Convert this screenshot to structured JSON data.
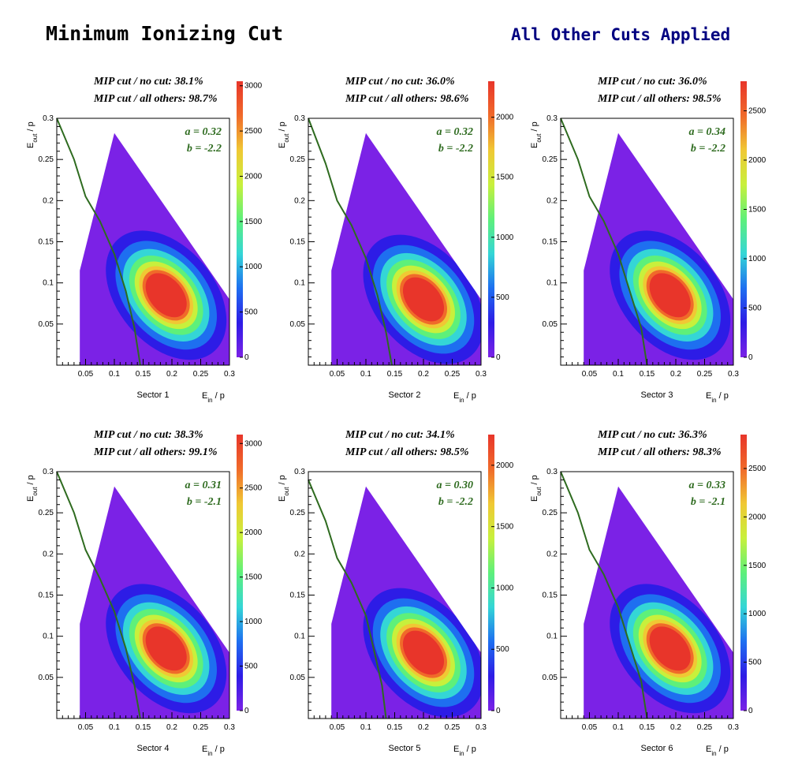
{
  "header": {
    "title": "Minimum Ionizing Cut",
    "subtitle": "All Other Cuts Applied"
  },
  "colors": {
    "cut_line": "#2e6b1f",
    "title_right": "#000080",
    "palette": [
      "#7b22e6",
      "#2d1ce6",
      "#1e6ff0",
      "#34d6d6",
      "#5ef07a",
      "#c8f03c",
      "#f0c834",
      "#f06a2a",
      "#e8352a"
    ]
  },
  "chart_data": [
    {
      "type": "heatmap",
      "sector_label": "Sector 1",
      "xlabel": "E_in / p",
      "ylabel": "E_out / p",
      "xlim": [
        0,
        0.3
      ],
      "ylim": [
        0,
        0.3
      ],
      "x_ticks": [
        "0.05",
        "0.1",
        "0.15",
        "0.2",
        "0.25",
        "0.3"
      ],
      "y_ticks": [
        "0.05",
        "0.1",
        "0.15",
        "0.2",
        "0.25",
        "0.3"
      ],
      "z_ticks": [
        "0",
        "500",
        "1000",
        "1500",
        "2000",
        "2500",
        "3000"
      ],
      "z_max": 3050,
      "stat_line1": "MIP cut / no cut: 38.1%",
      "stat_line2": "MIP cut / all others: 98.7%",
      "param_a": "a = 0.32",
      "param_b": "b = -2.2",
      "peak": [
        0.19,
        0.085
      ],
      "cut_line": [
        [
          0.0,
          0.3
        ],
        [
          0.03,
          0.25
        ],
        [
          0.05,
          0.205
        ],
        [
          0.075,
          0.175
        ],
        [
          0.1,
          0.135
        ],
        [
          0.12,
          0.09
        ],
        [
          0.135,
          0.045
        ],
        [
          0.145,
          0.0
        ]
      ]
    },
    {
      "type": "heatmap",
      "sector_label": "Sector 2",
      "xlabel": "E_in / p",
      "ylabel": "E_out / p",
      "xlim": [
        0,
        0.3
      ],
      "ylim": [
        0,
        0.3
      ],
      "x_ticks": [
        "0.05",
        "0.1",
        "0.15",
        "0.2",
        "0.25",
        "0.3"
      ],
      "y_ticks": [
        "0.05",
        "0.1",
        "0.15",
        "0.2",
        "0.25",
        "0.3"
      ],
      "z_ticks": [
        "0",
        "500",
        "1000",
        "1500",
        "2000"
      ],
      "z_max": 2300,
      "stat_line1": "MIP cut / no cut: 36.0%",
      "stat_line2": "MIP cut / all others: 98.6%",
      "param_a": "a = 0.32",
      "param_b": "b = -2.2",
      "peak": [
        0.2,
        0.08
      ],
      "cut_line": [
        [
          0.0,
          0.3
        ],
        [
          0.03,
          0.245
        ],
        [
          0.05,
          0.2
        ],
        [
          0.075,
          0.17
        ],
        [
          0.1,
          0.13
        ],
        [
          0.12,
          0.085
        ],
        [
          0.135,
          0.04
        ],
        [
          0.145,
          0.0
        ]
      ]
    },
    {
      "type": "heatmap",
      "sector_label": "Sector 3",
      "xlabel": "E_in / p",
      "ylabel": "E_out / p",
      "xlim": [
        0,
        0.3
      ],
      "ylim": [
        0,
        0.3
      ],
      "x_ticks": [
        "0.05",
        "0.1",
        "0.15",
        "0.2",
        "0.25",
        "0.3"
      ],
      "y_ticks": [
        "0.05",
        "0.1",
        "0.15",
        "0.2",
        "0.25",
        "0.3"
      ],
      "z_ticks": [
        "0",
        "500",
        "1000",
        "1500",
        "2000",
        "2500"
      ],
      "z_max": 2800,
      "stat_line1": "MIP cut / no cut: 36.0%",
      "stat_line2": "MIP cut / all others: 98.5%",
      "param_a": "a = 0.34",
      "param_b": "b = -2.2",
      "peak": [
        0.19,
        0.085
      ],
      "cut_line": [
        [
          0.0,
          0.3
        ],
        [
          0.03,
          0.25
        ],
        [
          0.05,
          0.205
        ],
        [
          0.075,
          0.175
        ],
        [
          0.1,
          0.135
        ],
        [
          0.12,
          0.09
        ],
        [
          0.14,
          0.045
        ],
        [
          0.15,
          0.0
        ]
      ]
    },
    {
      "type": "heatmap",
      "sector_label": "Sector 4",
      "xlabel": "E_in / p",
      "ylabel": "E_out / p",
      "xlim": [
        0,
        0.3
      ],
      "ylim": [
        0,
        0.3
      ],
      "x_ticks": [
        "0.05",
        "0.1",
        "0.15",
        "0.2",
        "0.25",
        "0.3"
      ],
      "y_ticks": [
        "0.05",
        "0.1",
        "0.15",
        "0.2",
        "0.25",
        "0.3"
      ],
      "z_ticks": [
        "0",
        "500",
        "1000",
        "1500",
        "2000",
        "2500",
        "3000"
      ],
      "z_max": 3100,
      "stat_line1": "MIP cut / no cut: 38.3%",
      "stat_line2": "MIP cut / all others: 99.1%",
      "param_a": "a = 0.31",
      "param_b": "b = -2.1",
      "peak": [
        0.19,
        0.085
      ],
      "cut_line": [
        [
          0.0,
          0.3
        ],
        [
          0.03,
          0.25
        ],
        [
          0.05,
          0.205
        ],
        [
          0.075,
          0.17
        ],
        [
          0.1,
          0.13
        ],
        [
          0.12,
          0.085
        ],
        [
          0.135,
          0.04
        ],
        [
          0.145,
          0.0
        ]
      ]
    },
    {
      "type": "heatmap",
      "sector_label": "Sector 5",
      "xlabel": "E_in / p",
      "ylabel": "E_out / p",
      "xlim": [
        0,
        0.3
      ],
      "ylim": [
        0,
        0.3
      ],
      "x_ticks": [
        "0.05",
        "0.1",
        "0.15",
        "0.2",
        "0.25",
        "0.3"
      ],
      "y_ticks": [
        "0.05",
        "0.1",
        "0.15",
        "0.2",
        "0.25",
        "0.3"
      ],
      "z_ticks": [
        "0",
        "500",
        "1000",
        "1500",
        "2000"
      ],
      "z_max": 2250,
      "stat_line1": "MIP cut / no cut: 34.1%",
      "stat_line2": "MIP cut / all others: 98.5%",
      "param_a": "a = 0.30",
      "param_b": "b = -2.2",
      "peak": [
        0.2,
        0.08
      ],
      "cut_line": [
        [
          0.0,
          0.29
        ],
        [
          0.03,
          0.24
        ],
        [
          0.05,
          0.195
        ],
        [
          0.075,
          0.165
        ],
        [
          0.1,
          0.125
        ],
        [
          0.115,
          0.08
        ],
        [
          0.128,
          0.04
        ],
        [
          0.135,
          0.0
        ]
      ]
    },
    {
      "type": "heatmap",
      "sector_label": "Sector 6",
      "xlabel": "E_in / p",
      "ylabel": "E_out / p",
      "xlim": [
        0,
        0.3
      ],
      "ylim": [
        0,
        0.3
      ],
      "x_ticks": [
        "0.05",
        "0.1",
        "0.15",
        "0.2",
        "0.25",
        "0.3"
      ],
      "y_ticks": [
        "0.05",
        "0.1",
        "0.15",
        "0.2",
        "0.25",
        "0.3"
      ],
      "z_ticks": [
        "0",
        "500",
        "1000",
        "1500",
        "2000",
        "2500"
      ],
      "z_max": 2850,
      "stat_line1": "MIP cut / no cut: 36.3%",
      "stat_line2": "MIP cut / all others: 98.3%",
      "param_a": "a = 0.33",
      "param_b": "b = -2.1",
      "peak": [
        0.19,
        0.085
      ],
      "cut_line": [
        [
          0.0,
          0.3
        ],
        [
          0.03,
          0.25
        ],
        [
          0.05,
          0.205
        ],
        [
          0.075,
          0.175
        ],
        [
          0.1,
          0.135
        ],
        [
          0.12,
          0.09
        ],
        [
          0.14,
          0.045
        ],
        [
          0.15,
          0.0
        ]
      ]
    }
  ]
}
